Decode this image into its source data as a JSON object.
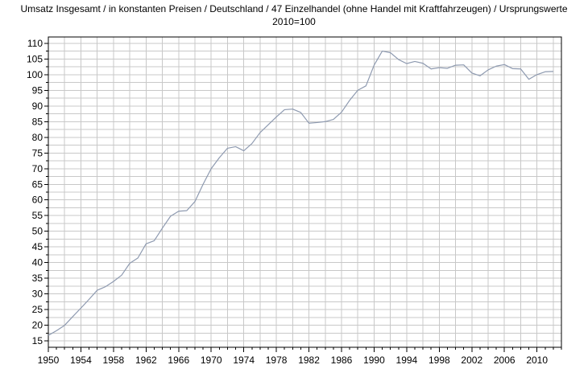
{
  "chart_data": {
    "type": "line",
    "title": "Umsatz Insgesamt / in konstanten Preisen / Deutschland / 47 Einzelhandel (ohne Handel mit Kraftfahrzeugen) / Ursprungswerte",
    "subtitle": "2010=100",
    "xlabel": "",
    "ylabel": "",
    "xlim": [
      1950,
      2013
    ],
    "ylim": [
      13,
      112
    ],
    "grid": true,
    "line_color": "#8e9ab0",
    "grid_color": "#c8c8c8",
    "x_ticks": [
      "1950",
      "1954",
      "1958",
      "1962",
      "1966",
      "1970",
      "1974",
      "1978",
      "1982",
      "1986",
      "1990",
      "1994",
      "1998",
      "2002",
      "2006",
      "2010"
    ],
    "y_ticks": [
      "15",
      "20",
      "25",
      "30",
      "35",
      "40",
      "45",
      "50",
      "55",
      "60",
      "65",
      "70",
      "75",
      "80",
      "85",
      "90",
      "95",
      "100",
      "105",
      "110"
    ],
    "series": [
      {
        "x": [
          1950,
          1951,
          1952,
          1953,
          1954,
          1955,
          1956,
          1957,
          1958,
          1959,
          1960,
          1961,
          1962,
          1963,
          1964,
          1965,
          1966,
          1967,
          1968,
          1969,
          1970,
          1971,
          1972,
          1973,
          1974,
          1975,
          1976,
          1977,
          1978,
          1979,
          1980,
          1981,
          1982,
          1983,
          1984,
          1985,
          1986,
          1987,
          1988,
          1989,
          1990,
          1991,
          1992,
          1993,
          1994,
          1995,
          1996,
          1997,
          1998,
          1999,
          2000,
          2001,
          2002,
          2003,
          2004,
          2005,
          2006,
          2007,
          2008,
          2009,
          2010,
          2011,
          2012
        ],
        "values": [
          16.8,
          18.3,
          20.0,
          22.8,
          25.5,
          28.3,
          31.2,
          32.3,
          34.0,
          36.0,
          39.8,
          41.5,
          46.0,
          47.0,
          51.0,
          54.8,
          56.4,
          56.6,
          59.5,
          65.0,
          70.0,
          73.5,
          76.5,
          77.0,
          75.7,
          78.0,
          81.5,
          84.0,
          86.5,
          88.8,
          89.0,
          87.9,
          84.5,
          84.7,
          85.0,
          85.7,
          88.0,
          91.8,
          95.0,
          96.4,
          103.0,
          107.5,
          107.0,
          104.8,
          103.5,
          104.2,
          103.6,
          101.8,
          102.2,
          102.0,
          103.0,
          103.1,
          100.5,
          99.6,
          101.5,
          102.7,
          103.2,
          101.9,
          101.8,
          98.5,
          100.0,
          100.9,
          101.0
        ]
      }
    ]
  }
}
